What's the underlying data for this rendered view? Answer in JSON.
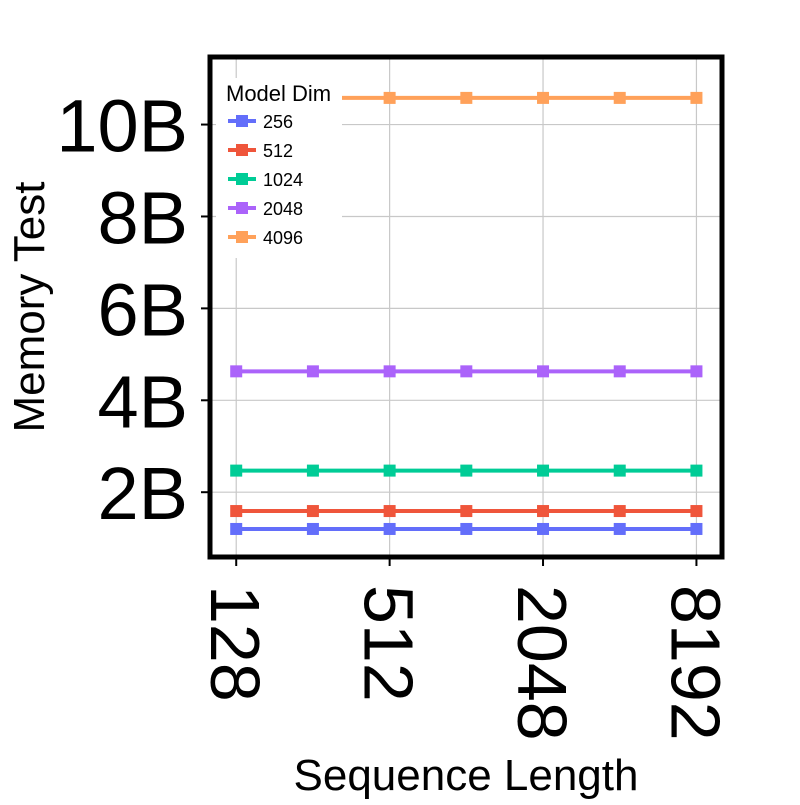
{
  "chart_data": {
    "type": "line",
    "title": "",
    "xlabel": "Sequence Length",
    "ylabel": "Memory Test",
    "x_scale": "log2",
    "x": [
      128,
      256,
      512,
      1024,
      2048,
      4096,
      8192
    ],
    "x_ticks": [
      128,
      512,
      2048,
      8192
    ],
    "x_tick_labels": [
      "128",
      "512",
      "2048",
      "8192"
    ],
    "y_ticks": [
      2000000000,
      4000000000,
      6000000000,
      8000000000,
      10000000000
    ],
    "y_tick_labels": [
      "2B",
      "4B",
      "6B",
      "8B",
      "10B"
    ],
    "xlim": [
      101,
      10321
    ],
    "ylim": [
      590000000,
      11470000000
    ],
    "grid": true,
    "legend": {
      "title": "Model Dim",
      "placement": "top-left"
    },
    "series": [
      {
        "name": "256",
        "color": "#636efa",
        "values": [
          1200000000,
          1200000000,
          1200000000,
          1200000000,
          1200000000,
          1200000000,
          1200000000
        ]
      },
      {
        "name": "512",
        "color": "#ef553b",
        "values": [
          1590000000,
          1590000000,
          1590000000,
          1590000000,
          1590000000,
          1590000000,
          1590000000
        ]
      },
      {
        "name": "1024",
        "color": "#00cc96",
        "values": [
          2470000000,
          2470000000,
          2470000000,
          2470000000,
          2470000000,
          2470000000,
          2470000000
        ]
      },
      {
        "name": "2048",
        "color": "#ab63fa",
        "values": [
          4630000000,
          4630000000,
          4630000000,
          4630000000,
          4630000000,
          4630000000,
          4630000000
        ]
      },
      {
        "name": "4096",
        "color": "#ffa15a",
        "values": [
          10580000000,
          10580000000,
          10580000000,
          10580000000,
          10580000000,
          10580000000,
          10580000000
        ]
      }
    ]
  }
}
